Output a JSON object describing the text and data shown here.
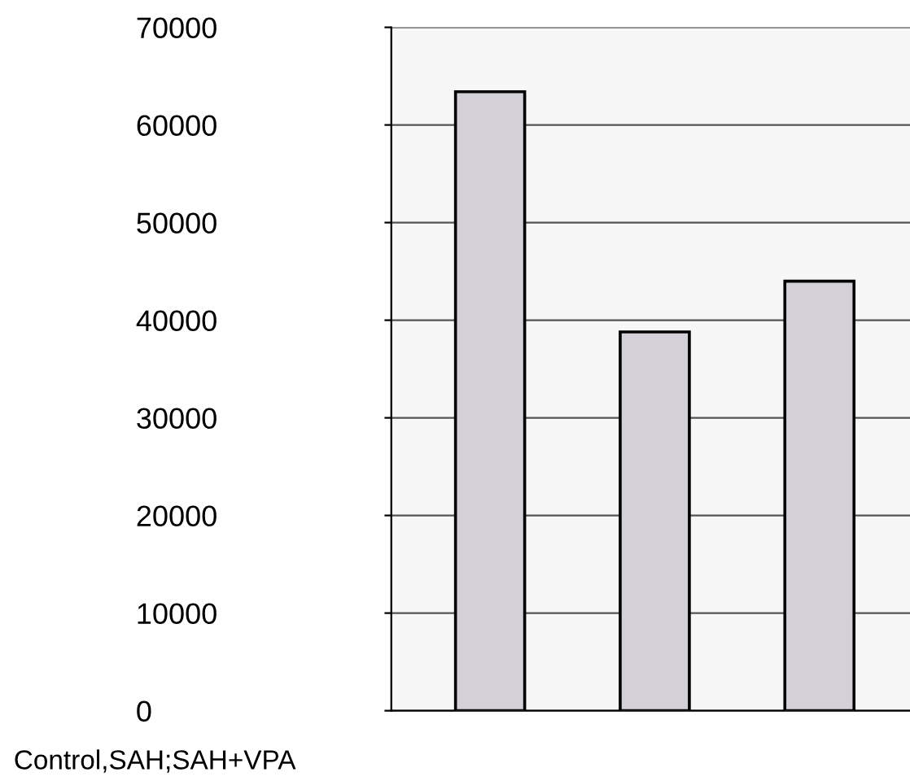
{
  "chart_data": {
    "type": "bar",
    "categories": [
      null,
      null,
      null
    ],
    "values": [
      63400,
      38800,
      44000
    ],
    "color": "#d3d0d8",
    "ylim": [
      0,
      70000
    ],
    "yticks": [
      0,
      10000,
      20000,
      30000,
      40000,
      50000,
      60000,
      70000
    ],
    "grid": "y",
    "annotations": [
      "Control,SAH;SAH+VPA"
    ]
  }
}
